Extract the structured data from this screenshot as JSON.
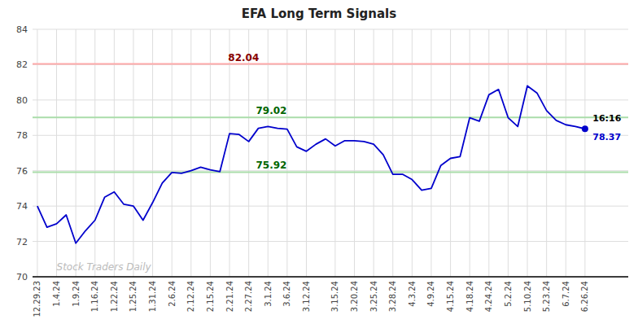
{
  "chart_data": {
    "type": "line",
    "title": "EFA Long Term Signals",
    "categories": [
      "12.29.23",
      null,
      "1.4.24",
      null,
      "1.9.24",
      null,
      "1.16.24",
      null,
      "1.22.24",
      null,
      "1.25.24",
      null,
      "1.31.24",
      null,
      "2.6.24",
      null,
      "2.12.24",
      null,
      "2.15.24",
      null,
      "2.21.24",
      null,
      "2.27.24",
      null,
      "3.1.24",
      null,
      "3.6.24",
      null,
      "3.12.24",
      null,
      null,
      "3.15.24",
      null,
      "3.20.24",
      null,
      "3.25.24",
      null,
      "3.28.24",
      null,
      "4.3.24",
      null,
      "4.9.24",
      null,
      "4.15.24",
      null,
      "4.18.24",
      null,
      "4.24.24",
      null,
      "5.2.24",
      null,
      "5.10.24",
      null,
      "5.23.24",
      null,
      "6.7.24",
      null,
      "6.26.24"
    ],
    "values": [
      74.0,
      72.8,
      73.0,
      73.5,
      71.9,
      72.6,
      73.2,
      74.5,
      74.8,
      74.1,
      74.0,
      73.2,
      74.2,
      75.3,
      75.9,
      75.85,
      76.0,
      76.2,
      76.05,
      75.95,
      78.1,
      78.05,
      77.65,
      78.4,
      78.5,
      78.4,
      78.35,
      77.35,
      77.1,
      77.5,
      77.8,
      77.4,
      77.7,
      77.7,
      77.65,
      77.5,
      76.9,
      75.8,
      75.8,
      75.5,
      74.9,
      75.0,
      76.3,
      76.7,
      76.8,
      79.0,
      78.8,
      80.3,
      80.6,
      79.0,
      78.5,
      80.8,
      80.4,
      79.4,
      78.85,
      78.6,
      78.5,
      78.37
    ],
    "color": "#0000cc",
    "reference_lines": [
      {
        "value": 82.04,
        "color": "#ffaaaa",
        "label_color": "#880000"
      },
      {
        "value": 79.02,
        "color": "#aaddaa",
        "label_color": "#006600"
      },
      {
        "value": 75.92,
        "color": "#aaddaa",
        "label_color": "#006600"
      }
    ],
    "last_point": {
      "value": 78.37,
      "color": "#0000cc",
      "time": "16:16",
      "time_color": "#000000"
    },
    "annotations": [
      {
        "text": "Stock Traders Daily",
        "color": "#bbbbbb"
      }
    ],
    "ylim": [
      70,
      84
    ],
    "yticks": [
      70,
      72,
      74,
      76,
      78,
      80,
      82,
      84
    ],
    "grid": true
  }
}
